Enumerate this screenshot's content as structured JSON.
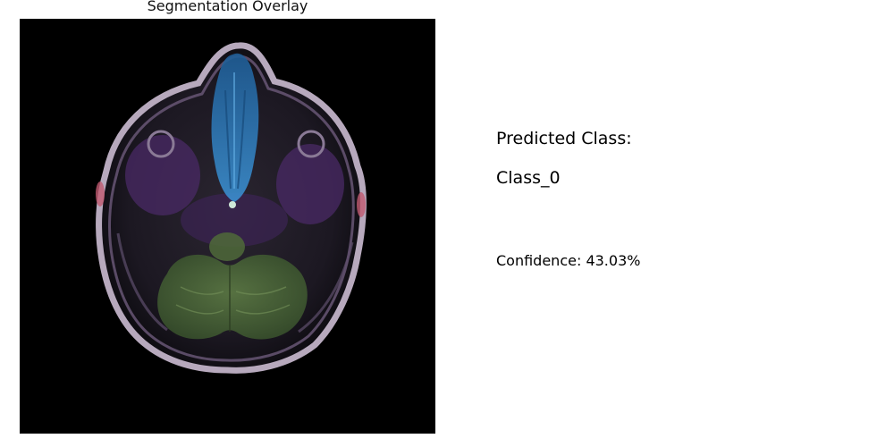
{
  "panel": {
    "title": "Segmentation Overlay"
  },
  "prediction": {
    "label": "Predicted Class:",
    "value": "Class_0",
    "confidence_text": "Confidence: 43.03%"
  },
  "colors": {
    "background": "#000000",
    "skull": "#9a8fa3",
    "sinus_overlay": "#2f7fc0",
    "cerebellum_overlay": "#4f6a3a",
    "tissue_overlay": "#4a2a66"
  }
}
